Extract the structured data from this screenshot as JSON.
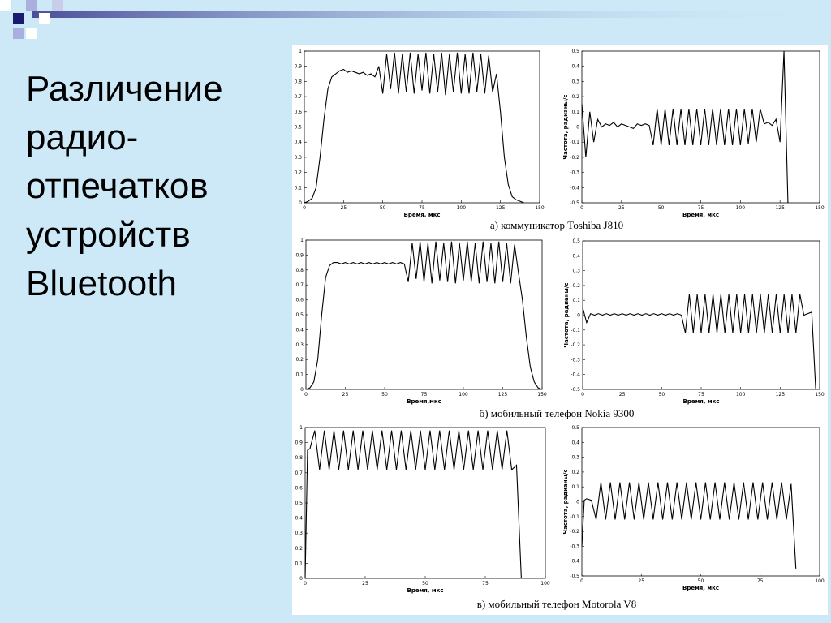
{
  "slide": {
    "title_lines": [
      "Различение",
      "радио-",
      "отпечатков",
      "устройств",
      "Bluetooth"
    ],
    "captions": [
      "а) коммуникатор Toshiba J810",
      "б) мобильный телефон Nokia 9300",
      "в) мобильный телефон Motorola V8"
    ]
  },
  "chart_data": [
    {
      "type": "line",
      "xlabel": "Время, мкс",
      "xlim": [
        0,
        150
      ],
      "ylim": [
        0,
        1
      ],
      "xticks": [
        0,
        25,
        50,
        75,
        100,
        125,
        150
      ],
      "yticks": [
        0,
        0.1,
        0.2,
        0.3,
        0.4,
        0.5,
        0.6,
        0.7,
        0.8,
        0.9,
        1
      ],
      "x": [
        0,
        2.5,
        5,
        7.5,
        10,
        12.5,
        15,
        17.5,
        20,
        22.5,
        25,
        27.5,
        30,
        32.5,
        35,
        37.5,
        40,
        42.5,
        45,
        47.5,
        50,
        52.5,
        55,
        57.5,
        60,
        62.5,
        65,
        67.5,
        70,
        72.5,
        75,
        77.5,
        80,
        82.5,
        85,
        87.5,
        90,
        92.5,
        95,
        97.5,
        100,
        102.5,
        105,
        107.5,
        110,
        112.5,
        115,
        117.5,
        120,
        122.5,
        125,
        127.5,
        130,
        132.5,
        135,
        137.5,
        140
      ],
      "values": [
        0,
        0.01,
        0.03,
        0.1,
        0.3,
        0.55,
        0.75,
        0.83,
        0.85,
        0.87,
        0.88,
        0.86,
        0.87,
        0.86,
        0.85,
        0.86,
        0.84,
        0.85,
        0.83,
        0.9,
        0.72,
        0.98,
        0.75,
        0.99,
        0.72,
        0.98,
        0.73,
        0.99,
        0.72,
        0.98,
        0.74,
        0.99,
        0.72,
        0.98,
        0.73,
        0.99,
        0.71,
        0.98,
        0.73,
        0.99,
        0.72,
        0.98,
        0.72,
        0.99,
        0.73,
        0.98,
        0.72,
        0.97,
        0.73,
        0.85,
        0.6,
        0.3,
        0.12,
        0.04,
        0.02,
        0.01,
        0
      ]
    },
    {
      "type": "line",
      "xlabel": "Время, мкс",
      "ylabel": "Частота, радианы/с",
      "xlim": [
        0,
        150
      ],
      "ylim": [
        -0.5,
        0.5
      ],
      "xticks": [
        0,
        25,
        50,
        75,
        100,
        125,
        150
      ],
      "yticks": [
        -0.5,
        -0.4,
        -0.3,
        -0.2,
        -0.1,
        0,
        0.1,
        0.2,
        0.3,
        0.4,
        0.5
      ],
      "x": [
        0,
        2.5,
        5,
        7.5,
        10,
        12.5,
        15,
        17.5,
        20,
        22.5,
        25,
        27.5,
        30,
        32.5,
        35,
        37.5,
        40,
        42.5,
        45,
        47.5,
        50,
        52.5,
        55,
        57.5,
        60,
        62.5,
        65,
        67.5,
        70,
        72.5,
        75,
        77.5,
        80,
        82.5,
        85,
        87.5,
        90,
        92.5,
        95,
        97.5,
        100,
        102.5,
        105,
        107.5,
        110,
        112.5,
        115,
        117.5,
        120,
        122.5,
        125,
        127.5,
        130
      ],
      "values": [
        0.15,
        -0.2,
        0.1,
        -0.1,
        0.05,
        0,
        0.02,
        0.01,
        0.03,
        0,
        0.02,
        0.01,
        0,
        -0.01,
        0.02,
        0.01,
        0.02,
        0.01,
        -0.12,
        0.12,
        -0.12,
        0.12,
        -0.12,
        0.12,
        -0.12,
        0.12,
        -0.12,
        0.12,
        -0.12,
        0.12,
        -0.12,
        0.12,
        -0.12,
        0.12,
        -0.12,
        0.12,
        -0.12,
        0.12,
        -0.12,
        0.12,
        -0.12,
        0.12,
        -0.11,
        0.12,
        -0.1,
        0.12,
        0.02,
        0.03,
        0.01,
        0.05,
        -0.1,
        0.5,
        -0.5
      ]
    },
    {
      "type": "line",
      "xlabel": "Время,мкс",
      "xlim": [
        0,
        150
      ],
      "ylim": [
        0,
        1
      ],
      "xticks": [
        0,
        25,
        50,
        75,
        100,
        125,
        150
      ],
      "yticks": [
        0,
        0.1,
        0.2,
        0.3,
        0.4,
        0.5,
        0.6,
        0.7,
        0.8,
        0.9,
        1
      ],
      "x": [
        0,
        2.5,
        5,
        7.5,
        10,
        12.5,
        15,
        17.5,
        20,
        22.5,
        25,
        27.5,
        30,
        32.5,
        35,
        37.5,
        40,
        42.5,
        45,
        47.5,
        50,
        52.5,
        55,
        57.5,
        60,
        62.5,
        65,
        67.5,
        70,
        72.5,
        75,
        77.5,
        80,
        82.5,
        85,
        87.5,
        90,
        92.5,
        95,
        97.5,
        100,
        102.5,
        105,
        107.5,
        110,
        112.5,
        115,
        117.5,
        120,
        122.5,
        125,
        127.5,
        130,
        132.5,
        135,
        137.5,
        140,
        142.5,
        145,
        147.5,
        150
      ],
      "values": [
        0,
        0.01,
        0.05,
        0.2,
        0.5,
        0.75,
        0.83,
        0.85,
        0.85,
        0.84,
        0.85,
        0.84,
        0.85,
        0.84,
        0.85,
        0.84,
        0.85,
        0.84,
        0.85,
        0.84,
        0.85,
        0.84,
        0.85,
        0.84,
        0.85,
        0.84,
        0.72,
        0.98,
        0.74,
        0.99,
        0.72,
        0.98,
        0.71,
        0.99,
        0.73,
        0.98,
        0.72,
        0.99,
        0.71,
        0.98,
        0.73,
        0.99,
        0.72,
        0.98,
        0.71,
        0.99,
        0.72,
        0.98,
        0.71,
        0.99,
        0.72,
        0.98,
        0.71,
        0.97,
        0.78,
        0.6,
        0.35,
        0.15,
        0.05,
        0.01,
        0
      ]
    },
    {
      "type": "line",
      "xlabel": "Время, мкс",
      "ylabel": "Частота, радианы/с",
      "xlim": [
        0,
        150
      ],
      "ylim": [
        -0.5,
        0.5
      ],
      "xticks": [
        0,
        25,
        50,
        75,
        100,
        125,
        150
      ],
      "yticks": [
        -0.5,
        -0.4,
        -0.3,
        -0.2,
        -0.1,
        0,
        0.1,
        0.2,
        0.3,
        0.4,
        0.5
      ],
      "x": [
        0,
        2.5,
        5,
        7.5,
        10,
        12.5,
        15,
        17.5,
        20,
        22.5,
        25,
        27.5,
        30,
        32.5,
        35,
        37.5,
        40,
        42.5,
        45,
        47.5,
        50,
        52.5,
        55,
        57.5,
        60,
        62.5,
        65,
        67.5,
        70,
        72.5,
        75,
        77.5,
        80,
        82.5,
        85,
        87.5,
        90,
        92.5,
        95,
        97.5,
        100,
        102.5,
        105,
        107.5,
        110,
        112.5,
        115,
        117.5,
        120,
        122.5,
        125,
        127.5,
        130,
        132.5,
        135,
        137.5,
        140,
        142.5,
        145,
        147.5
      ],
      "values": [
        0.05,
        -0.05,
        0.01,
        0,
        0.01,
        0,
        0.01,
        0,
        0.01,
        0,
        0.01,
        0,
        0.01,
        0,
        0.01,
        0,
        0.01,
        0,
        0.01,
        0,
        0.01,
        0,
        0.01,
        0,
        0.01,
        0,
        -0.12,
        0.14,
        -0.12,
        0.14,
        -0.12,
        0.14,
        -0.12,
        0.14,
        -0.12,
        0.14,
        -0.12,
        0.14,
        -0.12,
        0.14,
        -0.12,
        0.14,
        -0.12,
        0.14,
        -0.12,
        0.14,
        -0.12,
        0.14,
        -0.12,
        0.14,
        -0.12,
        0.14,
        -0.12,
        0.14,
        -0.12,
        0.14,
        0,
        0.01,
        0.02,
        -0.5
      ]
    },
    {
      "type": "line",
      "xlabel": "Время, мкс",
      "xlim": [
        0,
        100
      ],
      "ylim": [
        0,
        1
      ],
      "xticks": [
        0,
        25,
        50,
        75,
        100
      ],
      "yticks": [
        0,
        0.1,
        0.2,
        0.3,
        0.4,
        0.5,
        0.6,
        0.7,
        0.8,
        0.9,
        1
      ],
      "x": [
        0,
        1,
        2,
        4,
        6,
        8,
        10,
        12,
        14,
        16,
        18,
        20,
        22,
        24,
        26,
        28,
        30,
        32,
        34,
        36,
        38,
        40,
        42,
        44,
        46,
        48,
        50,
        52,
        54,
        56,
        58,
        60,
        62,
        64,
        66,
        68,
        70,
        72,
        74,
        76,
        78,
        80,
        82,
        84,
        86,
        88,
        90
      ],
      "values": [
        0,
        0.85,
        0.86,
        0.98,
        0.72,
        0.98,
        0.72,
        0.98,
        0.72,
        0.98,
        0.72,
        0.98,
        0.72,
        0.98,
        0.72,
        0.98,
        0.72,
        0.98,
        0.72,
        0.98,
        0.72,
        0.98,
        0.72,
        0.98,
        0.72,
        0.98,
        0.72,
        0.98,
        0.72,
        0.98,
        0.72,
        0.98,
        0.72,
        0.98,
        0.72,
        0.98,
        0.72,
        0.98,
        0.72,
        0.98,
        0.72,
        0.98,
        0.72,
        0.98,
        0.72,
        0.75,
        0
      ]
    },
    {
      "type": "line",
      "xlabel": "Время, мкс",
      "ylabel": "Частота, радианы/с",
      "xlim": [
        0,
        100
      ],
      "ylim": [
        -0.5,
        0.5
      ],
      "xticks": [
        0,
        25,
        50,
        75,
        100
      ],
      "yticks": [
        -0.5,
        -0.4,
        -0.3,
        -0.2,
        -0.1,
        0,
        0.1,
        0.2,
        0.3,
        0.4,
        0.5
      ],
      "x": [
        0,
        1,
        2,
        4,
        6,
        8,
        10,
        12,
        14,
        16,
        18,
        20,
        22,
        24,
        26,
        28,
        30,
        32,
        34,
        36,
        38,
        40,
        42,
        44,
        46,
        48,
        50,
        52,
        54,
        56,
        58,
        60,
        62,
        64,
        66,
        68,
        70,
        72,
        74,
        76,
        78,
        80,
        82,
        84,
        86,
        88,
        90
      ],
      "values": [
        -0.3,
        0.01,
        0.02,
        0.01,
        -0.12,
        0.13,
        -0.12,
        0.13,
        -0.12,
        0.13,
        -0.12,
        0.13,
        -0.12,
        0.13,
        -0.12,
        0.13,
        -0.12,
        0.13,
        -0.12,
        0.13,
        -0.12,
        0.13,
        -0.12,
        0.13,
        -0.12,
        0.13,
        -0.12,
        0.13,
        -0.12,
        0.13,
        -0.12,
        0.13,
        -0.12,
        0.13,
        -0.12,
        0.13,
        -0.12,
        0.13,
        -0.12,
        0.13,
        -0.12,
        0.13,
        -0.12,
        0.13,
        -0.12,
        0.12,
        -0.45
      ]
    }
  ]
}
